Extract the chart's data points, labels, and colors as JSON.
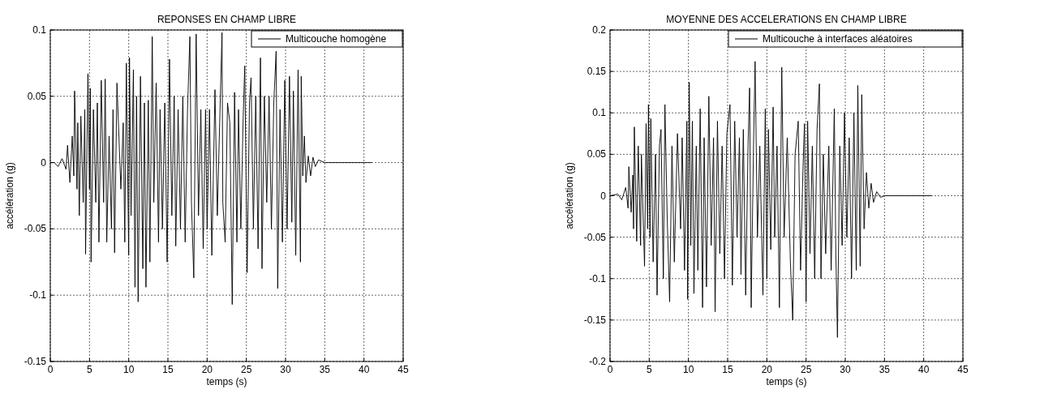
{
  "chart_data": [
    {
      "type": "line",
      "title": "REPONSES EN CHAMP LIBRE",
      "xlabel": "temps (s)",
      "ylabel": "accélération (g)",
      "xlim": [
        0,
        45
      ],
      "xticks": [
        0,
        5,
        10,
        15,
        20,
        25,
        30,
        35,
        40,
        45
      ],
      "ylim": [
        -0.15,
        0.1
      ],
      "yticks": [
        -0.15,
        -0.1,
        -0.05,
        0,
        0.05,
        0.1
      ],
      "grid": true,
      "legend": "top right",
      "line_style": "solid",
      "series": [
        {
          "name": "Multicouche homogène",
          "color": "#000000",
          "x": [
            0,
            0.5,
            1,
            1.5,
            2,
            2.2,
            2.5,
            2.8,
            3,
            3.1,
            3.4,
            3.5,
            3.7,
            3.9,
            4.2,
            4.4,
            4.5,
            4.8,
            5,
            5.1,
            5.2,
            5.5,
            5.8,
            6,
            6.2,
            6.5,
            6.8,
            7,
            7.2,
            7.5,
            7.8,
            8,
            8.2,
            8.5,
            9,
            9.3,
            9.5,
            9.7,
            10,
            10.1,
            10.3,
            10.6,
            10.8,
            11,
            11.2,
            11.5,
            11.8,
            12,
            12.2,
            12.5,
            12.7,
            13,
            13.2,
            13.5,
            13.8,
            14,
            14.3,
            14.6,
            14.9,
            15.2,
            15.5,
            15.8,
            16,
            16.3,
            16.6,
            16.9,
            17.2,
            17.5,
            17.8,
            18,
            18.3,
            18.6,
            18.9,
            19.2,
            19.5,
            19.8,
            20,
            20.3,
            20.6,
            21,
            21.3,
            21.6,
            21.9,
            22,
            22.3,
            22.6,
            22.9,
            23.2,
            23.5,
            23.8,
            24,
            24.3,
            24.6,
            24.8,
            25.1,
            25.4,
            25.6,
            25.9,
            26.2,
            26.5,
            26.8,
            27,
            27.3,
            27.6,
            27.9,
            28.2,
            28.5,
            28.8,
            29,
            29.3,
            29.6,
            29.9,
            30.2,
            30.5,
            30.8,
            31,
            31.3,
            31.6,
            31.9,
            32,
            32.2,
            32.4,
            32.6,
            32.9,
            33.2,
            33.5,
            33.8,
            34.2,
            35,
            37,
            41
          ],
          "values": [
            0,
            0,
            -0.003,
            0.003,
            -0.005,
            0.013,
            -0.015,
            0.02,
            -0.01,
            0.054,
            -0.02,
            0.03,
            -0.04,
            0.035,
            -0.03,
            0.04,
            -0.069,
            0.067,
            -0.02,
            0.056,
            -0.075,
            0.04,
            -0.03,
            0.045,
            -0.06,
            0.062,
            -0.03,
            0.063,
            -0.06,
            0.02,
            -0.05,
            0.04,
            -0.068,
            0.06,
            -0.02,
            0.03,
            -0.06,
            0.075,
            -0.07,
            0.079,
            -0.04,
            0.07,
            -0.094,
            0.05,
            -0.105,
            0.065,
            -0.08,
            0.045,
            -0.094,
            0.047,
            -0.075,
            0.095,
            -0.03,
            0.06,
            -0.06,
            0.04,
            -0.05,
            0.045,
            -0.075,
            0.078,
            -0.04,
            0.05,
            -0.063,
            0.04,
            -0.05,
            0.05,
            -0.06,
            0.04,
            0.095,
            -0.03,
            -0.087,
            0.097,
            -0.04,
            0.04,
            -0.065,
            0.04,
            -0.05,
            0.04,
            -0.07,
            0.055,
            -0.04,
            0.03,
            0.098,
            -0.03,
            -0.06,
            0.045,
            0.03,
            -0.107,
            0.053,
            -0.06,
            0.04,
            -0.05,
            0.035,
            0.073,
            -0.083,
            0.045,
            0.064,
            -0.05,
            0.05,
            -0.065,
            0.079,
            -0.08,
            0.05,
            -0.03,
            0.05,
            -0.05,
            0.045,
            0.084,
            -0.095,
            0.04,
            -0.06,
            0.062,
            -0.05,
            0.065,
            -0.045,
            0.054,
            -0.07,
            0.07,
            -0.075,
            0.065,
            -0.01,
            0.02,
            -0.015,
            0.005,
            -0.01,
            0.004,
            -0.003,
            0.002,
            0,
            0,
            0
          ]
        }
      ]
    },
    {
      "type": "line",
      "title": "MOYENNE DES ACCELERATIONS EN CHAMP LIBRE",
      "xlabel": "temps (s)",
      "ylabel": "accélération (g)",
      "xlim": [
        0,
        45
      ],
      "xticks": [
        0,
        5,
        10,
        15,
        20,
        25,
        30,
        35,
        40,
        45
      ],
      "ylim": [
        -0.2,
        0.2
      ],
      "yticks": [
        -0.2,
        -0.15,
        -0.1,
        -0.05,
        0,
        0.05,
        0.1,
        0.15,
        0.2
      ],
      "grid": true,
      "legend": "top right",
      "line_style": "solid",
      "series": [
        {
          "name": "Multicouche à interfaces aléatoires",
          "color": "#000000",
          "x": [
            0,
            1,
            1.5,
            2,
            2.3,
            2.4,
            2.7,
            2.9,
            3,
            3.1,
            3.4,
            3.6,
            3.9,
            4,
            4.4,
            4.6,
            4.8,
            4.9,
            5.1,
            5.2,
            5.5,
            5.8,
            6,
            6.3,
            6.5,
            6.8,
            7,
            7.3,
            7.6,
            7.9,
            8.2,
            8.6,
            9,
            9.2,
            9.5,
            9.8,
            9.9,
            10.1,
            10.3,
            10.5,
            10.7,
            11,
            11.2,
            11.5,
            11.8,
            12,
            12.3,
            12.6,
            12.9,
            13.2,
            13.4,
            13.7,
            14,
            14.3,
            14.6,
            14.9,
            15.3,
            15.6,
            15.9,
            16.2,
            16.5,
            16.7,
            17,
            17.3,
            17.6,
            17.8,
            18,
            18.3,
            18.5,
            18.8,
            19.1,
            19.5,
            19.8,
            20,
            20.2,
            20.5,
            20.8,
            21,
            21.3,
            21.6,
            21.9,
            22.2,
            22.6,
            23,
            23.3,
            23.6,
            24,
            24.3,
            24.6,
            24.8,
            25,
            25.2,
            25.5,
            25.8,
            26.1,
            26.4,
            26.7,
            26.9,
            27.2,
            27.5,
            27.9,
            28.2,
            28.6,
            28.8,
            29,
            29.3,
            29.6,
            29.9,
            30.2,
            30.5,
            30.8,
            31.1,
            31.4,
            31.6,
            31.9,
            32.1,
            32.4,
            32.7,
            33,
            33.3,
            33.6,
            34,
            34.5,
            35,
            41
          ],
          "values": [
            0,
            0.002,
            -0.005,
            0.01,
            -0.015,
            0.035,
            -0.02,
            0.025,
            -0.04,
            0.083,
            -0.055,
            0.06,
            -0.06,
            0.05,
            -0.085,
            0.087,
            -0.04,
            0.11,
            -0.05,
            0.093,
            -0.08,
            0.05,
            -0.12,
            0.06,
            0.08,
            -0.1,
            0.11,
            -0.03,
            -0.128,
            0.06,
            -0.08,
            0.075,
            -0.04,
            0.07,
            -0.09,
            0.09,
            -0.125,
            0.137,
            -0.06,
            0.09,
            -0.118,
            0.06,
            -0.09,
            0.105,
            -0.135,
            0.07,
            -0.11,
            0.12,
            -0.06,
            0.07,
            -0.14,
            0.09,
            -0.07,
            0.06,
            -0.1,
            0.075,
            0.11,
            -0.108,
            0.09,
            -0.05,
            0.07,
            -0.095,
            0.08,
            -0.12,
            0.06,
            0.13,
            -0.135,
            0.06,
            0.162,
            -0.05,
            0.06,
            -0.12,
            0.105,
            -0.1,
            0.08,
            -0.065,
            0.107,
            -0.05,
            0.06,
            -0.135,
            0.155,
            -0.05,
            0.07,
            -0.08,
            -0.15,
            0.05,
            0.09,
            -0.09,
            0.03,
            0.087,
            -0.128,
            0.09,
            -0.07,
            0.06,
            -0.1,
            0.08,
            0.135,
            -0.1,
            0.05,
            -0.07,
            0.06,
            -0.09,
            0.105,
            -0.07,
            -0.171,
            0.06,
            -0.06,
            0.1,
            -0.05,
            0.07,
            -0.1,
            0.1,
            -0.09,
            0.133,
            -0.085,
            0.122,
            -0.04,
            0.028,
            -0.015,
            0.015,
            -0.008,
            0.005,
            -0.002,
            0,
            0
          ]
        }
      ]
    }
  ]
}
